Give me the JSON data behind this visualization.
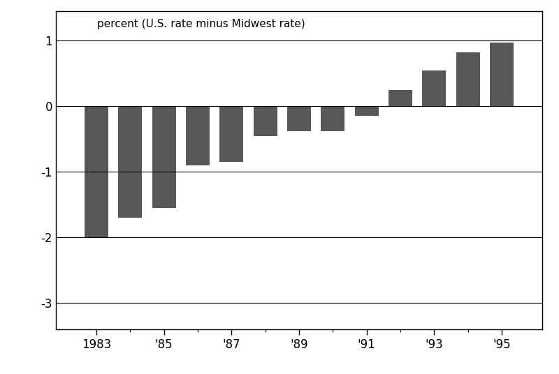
{
  "years": [
    1983,
    1984,
    1985,
    1986,
    1987,
    1988,
    1989,
    1990,
    1991,
    1992,
    1993,
    1994,
    1995
  ],
  "values": [
    -2.0,
    -1.7,
    -1.55,
    -0.9,
    -0.85,
    -0.45,
    -0.38,
    -0.38,
    -0.15,
    0.25,
    0.55,
    0.82,
    0.97
  ],
  "bar_color": "#585858",
  "ylabel_text": "percent (U.S. rate minus Midwest rate)",
  "ylim": [
    -3.4,
    1.45
  ],
  "yticks": [
    -3,
    -2,
    -1,
    0,
    1
  ],
  "background_color": "#ffffff",
  "grid_color": "#000000",
  "bar_width": 0.7,
  "xtick_positions": [
    1983,
    1985,
    1987,
    1989,
    1991,
    1993,
    1995
  ],
  "xtick_labels": [
    "1983",
    "'85",
    "'87",
    "'89",
    "'91",
    "'93",
    "'95"
  ],
  "xlim": [
    1981.8,
    1996.2
  ]
}
